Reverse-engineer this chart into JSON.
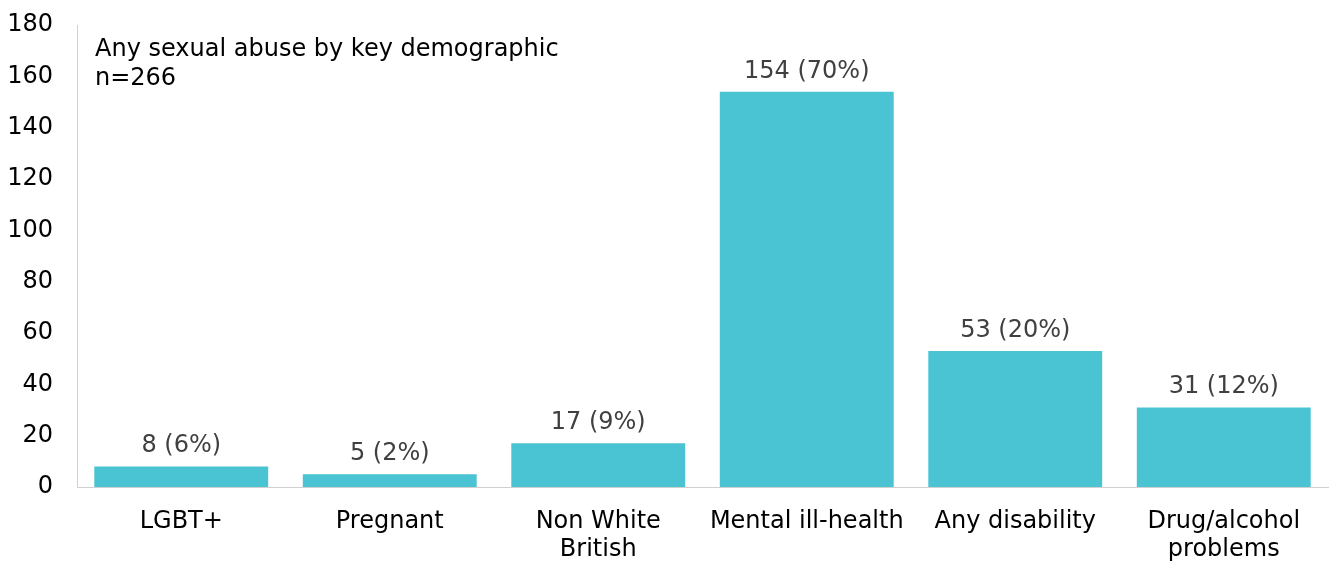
{
  "chart_data": {
    "type": "bar",
    "title": "Any sexual abuse by key demographic",
    "subtitle": "n=266",
    "categories": [
      "LGBT+",
      "Pregnant",
      "Non White\nBritish",
      "Mental ill-health",
      "Any disability",
      "Drug/alcohol\nproblems"
    ],
    "values": [
      8,
      5,
      17,
      154,
      53,
      31
    ],
    "value_labels": [
      "8 (6%)",
      "5 (2%)",
      "17 (9%)",
      "154 (70%)",
      "53 (20%)",
      "31 (12%)"
    ],
    "color": "#4ac3d2",
    "ylim": [
      0,
      180
    ],
    "yticks": [
      0,
      20,
      40,
      60,
      80,
      100,
      120,
      140,
      160,
      180
    ],
    "grid": false,
    "legend": false
  }
}
